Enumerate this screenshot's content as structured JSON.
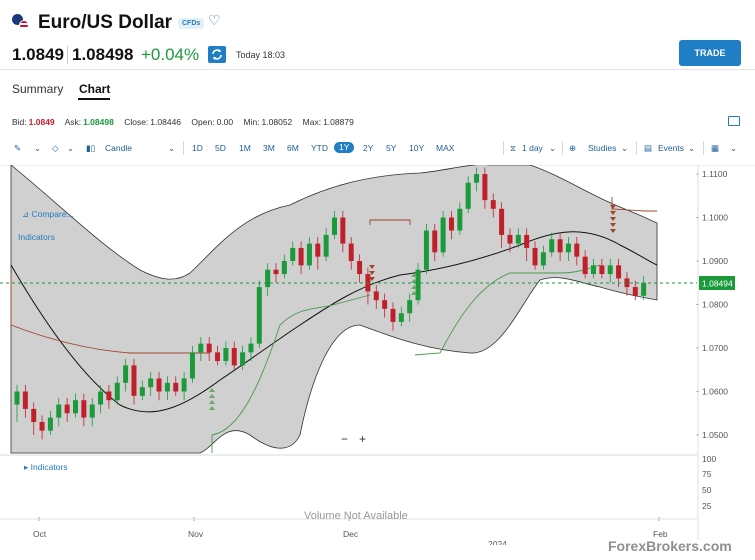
{
  "header": {
    "title": "Euro/US Dollar",
    "badge": "CFDs",
    "bid_price": "1.0849",
    "price": "1.08498",
    "change": "+0.04%",
    "time": "Today 18:03",
    "trade_label": "TRADE"
  },
  "tabs": [
    {
      "label": "Summary"
    },
    {
      "label": "Chart"
    }
  ],
  "quote": {
    "bid_label": "Bid:",
    "bid": "1.0849",
    "ask_label": "Ask:",
    "ask": "1.08498",
    "close_label": "Close:",
    "close": "1.08446",
    "open_label": "Open:",
    "open": "0.00",
    "min_label": "Min:",
    "min": "1.08052",
    "max_label": "Max:",
    "max": "1.08879"
  },
  "toolbar": {
    "chart_type": "Candle",
    "ranges": [
      "1D",
      "5D",
      "1M",
      "3M",
      "6M",
      "YTD",
      "1Y",
      "2Y",
      "5Y",
      "10Y",
      "MAX"
    ],
    "active_range": "1Y",
    "interval": "1 day",
    "studies": "Studies",
    "events": "Events"
  },
  "chart_links": {
    "compare": "Compare...",
    "indicators": "Indicators",
    "indicators_lower": "Indicators"
  },
  "chart_data": {
    "type": "candlestick",
    "y_ticks": [
      "1.1100",
      "1.1000",
      "1.0900",
      "1.0800",
      "1.0700",
      "1.0600",
      "1.0500"
    ],
    "ylim": [
      1.047,
      1.113
    ],
    "current_price_label": "1.08494",
    "current_price": 1.08494,
    "volume_ticks": [
      "100",
      "75",
      "50",
      "25"
    ],
    "volume_note": "Volume Not Available",
    "x_labels": [
      "Oct",
      "Nov",
      "Dec",
      "Feb"
    ],
    "year_label": "2024",
    "colors": {
      "up": "#1a9a3a",
      "down": "#c0202a",
      "band": "#c8c8c8",
      "price_line": "#1a9a3a"
    }
  },
  "watermark": "ForexBrokers.com"
}
